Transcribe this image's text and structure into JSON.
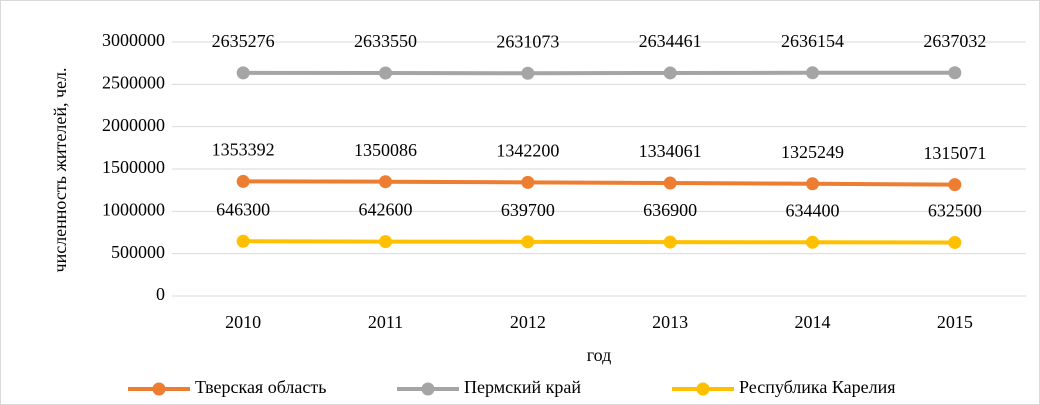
{
  "chart_data": {
    "type": "line",
    "y_label": "численность жителей, чел.",
    "x_label": "год",
    "categories": [
      "2010",
      "2011",
      "2012",
      "2013",
      "2014",
      "2015"
    ],
    "series": [
      {
        "name": "Тверская область",
        "color": "#ed7d31",
        "values": [
          1353392,
          1350086,
          1342200,
          1334061,
          1325249,
          1315071
        ]
      },
      {
        "name": "Пермский край",
        "color": "#a5a5a5",
        "values": [
          2635276,
          2633550,
          2631073,
          2634461,
          2636154,
          2637032
        ]
      },
      {
        "name": "Республика Карелия",
        "color": "#ffc000",
        "values": [
          646300,
          642600,
          639700,
          636900,
          634400,
          632500
        ]
      }
    ],
    "ylim": [
      0,
      3000000
    ],
    "yticks": [
      0,
      500000,
      1000000,
      1500000,
      2000000,
      2500000,
      3000000
    ],
    "grid": true,
    "legend": "bottom"
  }
}
